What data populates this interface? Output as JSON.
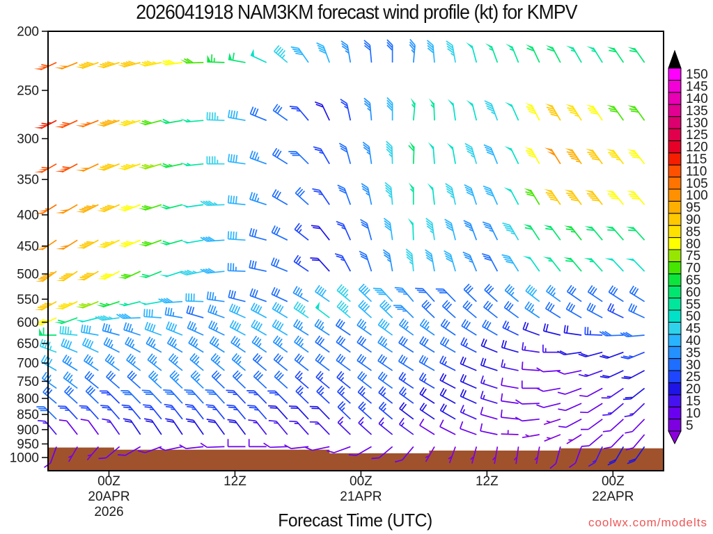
{
  "title": "2026041918 NAM3KM forecast wind profile (kt) for KMPV",
  "watermark": "coolwx.com/modelts",
  "x_axis": {
    "label": "Forecast Time (UTC)",
    "ticks": [
      {
        "hour": 6,
        "lines": [
          "00Z",
          "20APR",
          "2026"
        ]
      },
      {
        "hour": 18,
        "lines": [
          "12Z"
        ]
      },
      {
        "hour": 30,
        "lines": [
          "00Z",
          "21APR"
        ]
      },
      {
        "hour": 42,
        "lines": [
          "12Z"
        ]
      },
      {
        "hour": 54,
        "lines": [
          "00Z",
          "22APR"
        ]
      }
    ]
  },
  "y_axis": {
    "ticks": [
      200,
      250,
      300,
      350,
      400,
      450,
      500,
      550,
      600,
      650,
      700,
      750,
      800,
      850,
      900,
      950,
      1000
    ]
  },
  "colorbar": {
    "values": [
      5,
      10,
      15,
      20,
      25,
      30,
      35,
      40,
      45,
      50,
      55,
      60,
      65,
      70,
      75,
      80,
      85,
      90,
      95,
      100,
      105,
      110,
      115,
      120,
      125,
      130,
      135,
      140,
      145,
      150
    ],
    "colors": [
      "#7d00e0",
      "#6a00f0",
      "#4613f0",
      "#1e14e6",
      "#1e46ff",
      "#1e6eff",
      "#2391ff",
      "#28b4ff",
      "#2fd2eb",
      "#00e1c8",
      "#00e69b",
      "#00e66e",
      "#0ce63c",
      "#46e600",
      "#96e600",
      "#ffff00",
      "#ffe100",
      "#ffc800",
      "#ffaf00",
      "#ff9100",
      "#ff7300",
      "#ff5000",
      "#f51e00",
      "#e60028",
      "#e1004b",
      "#dc006e",
      "#e10091",
      "#e900b4",
      "#f200d7",
      "#ff00ff"
    ],
    "over_color": "#000000",
    "under_color": "#8c00dc"
  },
  "terrain": {
    "color": "#a0522d",
    "base_pressure_hpa": 1050,
    "segments": [
      {
        "h0": 0,
        "h1": 6.5,
        "top_pressure_hpa": 963
      },
      {
        "h0": 6.5,
        "h1": 27,
        "top_pressure_hpa": 971
      },
      {
        "h0": 27,
        "h1": 36.5,
        "top_pressure_hpa": 984
      },
      {
        "h0": 36.5,
        "h1": 49,
        "top_pressure_hpa": 974
      },
      {
        "h0": 49,
        "h1": 59,
        "top_pressure_hpa": 966
      }
    ]
  },
  "chart_data": {
    "type": "wind-barb-time-height",
    "model": "NAM3KM",
    "station": "KMPV",
    "init": "2026-04-19 18Z",
    "units": "kt",
    "x_axis_range_hours": [
      0,
      59
    ],
    "pressure_axis_range_hpa": [
      200,
      1050
    ],
    "x_hours_from_init": [
      1,
      3,
      5,
      7,
      9,
      11,
      13,
      15,
      17,
      19,
      21,
      23,
      25,
      27,
      29,
      31,
      33,
      35,
      37,
      39,
      41,
      43,
      45,
      47,
      49,
      51,
      53,
      55,
      57
    ],
    "pressure_levels_hpa": [
      225,
      280,
      330,
      385,
      440,
      495,
      555,
      590,
      630,
      672,
      720,
      770,
      815,
      865,
      917,
      960
    ],
    "speed_kt": [
      [
        108,
        100,
        92,
        88,
        90,
        85,
        78,
        70,
        65,
        58,
        50,
        45,
        42,
        38,
        35,
        32,
        30,
        35,
        40,
        45,
        50,
        55,
        55,
        60,
        58,
        55,
        55,
        60,
        62
      ],
      [
        115,
        112,
        105,
        95,
        85,
        68,
        62,
        55,
        45,
        38,
        32,
        28,
        25,
        22,
        25,
        35,
        40,
        55,
        55,
        50,
        48,
        45,
        52,
        80,
        88,
        85,
        80,
        68,
        70
      ],
      [
        112,
        108,
        100,
        92,
        85,
        75,
        65,
        55,
        45,
        40,
        35,
        30,
        28,
        25,
        28,
        35,
        45,
        58,
        52,
        48,
        45,
        42,
        50,
        78,
        100,
        95,
        90,
        85,
        80
      ],
      [
        105,
        102,
        95,
        88,
        80,
        72,
        62,
        52,
        45,
        40,
        35,
        30,
        28,
        25,
        28,
        35,
        45,
        55,
        50,
        45,
        42,
        40,
        48,
        70,
        90,
        92,
        88,
        82,
        78
      ],
      [
        100,
        98,
        92,
        85,
        78,
        68,
        58,
        48,
        42,
        38,
        32,
        28,
        25,
        22,
        25,
        32,
        38,
        52,
        45,
        40,
        35,
        35,
        45,
        60,
        62,
        65,
        62,
        60,
        58
      ],
      [
        95,
        92,
        88,
        80,
        72,
        62,
        52,
        45,
        40,
        35,
        30,
        28,
        25,
        22,
        25,
        30,
        35,
        45,
        42,
        38,
        35,
        32,
        40,
        52,
        55,
        58,
        55,
        52,
        50
      ],
      [
        88,
        85,
        75,
        65,
        55,
        48,
        42,
        38,
        35,
        32,
        30,
        32,
        35,
        38,
        45,
        40,
        38,
        35,
        32,
        30,
        30,
        32,
        35,
        38,
        35,
        32,
        30,
        28,
        30
      ],
      [
        80,
        60,
        50,
        45,
        40,
        38,
        35,
        32,
        35,
        38,
        40,
        42,
        45,
        50,
        45,
        40,
        38,
        35,
        32,
        30,
        28,
        30,
        32,
        35,
        32,
        30,
        28,
        26,
        28
      ],
      [
        60,
        45,
        38,
        35,
        35,
        38,
        38,
        36,
        35,
        38,
        40,
        38,
        36,
        34,
        32,
        35,
        38,
        36,
        34,
        32,
        30,
        28,
        25,
        22,
        20,
        22,
        25,
        28,
        30
      ],
      [
        45,
        40,
        38,
        35,
        34,
        35,
        36,
        35,
        34,
        35,
        36,
        35,
        34,
        32,
        30,
        32,
        34,
        32,
        30,
        28,
        25,
        22,
        18,
        15,
        15,
        18,
        20,
        22,
        25
      ],
      [
        38,
        36,
        34,
        33,
        34,
        35,
        36,
        35,
        34,
        33,
        32,
        31,
        30,
        30,
        30,
        31,
        32,
        30,
        28,
        25,
        22,
        18,
        15,
        12,
        10,
        12,
        15,
        18,
        20
      ],
      [
        35,
        34,
        32,
        31,
        32,
        33,
        34,
        33,
        32,
        31,
        30,
        28,
        26,
        26,
        27,
        28,
        28,
        26,
        24,
        22,
        20,
        16,
        12,
        10,
        8,
        10,
        12,
        15,
        18
      ],
      [
        32,
        30,
        28,
        27,
        28,
        29,
        30,
        29,
        28,
        27,
        26,
        25,
        24,
        24,
        25,
        26,
        26,
        24,
        22,
        20,
        18,
        14,
        10,
        8,
        8,
        10,
        12,
        14,
        15
      ],
      [
        28,
        26,
        25,
        24,
        25,
        26,
        27,
        26,
        25,
        24,
        23,
        22,
        22,
        22,
        23,
        24,
        24,
        22,
        20,
        18,
        15,
        12,
        10,
        8,
        6,
        8,
        10,
        12,
        12
      ],
      [
        15,
        10,
        12,
        15,
        18,
        20,
        22,
        22,
        20,
        18,
        16,
        15,
        14,
        14,
        15,
        16,
        16,
        14,
        12,
        10,
        8,
        8,
        6,
        6,
        5,
        6,
        8,
        10,
        10
      ],
      [
        8,
        5,
        6,
        8,
        10,
        10,
        10,
        10,
        8,
        8,
        8,
        8,
        8,
        8,
        8,
        8,
        8,
        8,
        6,
        5,
        5,
        5,
        5,
        5,
        8,
        10,
        15,
        18,
        20
      ]
    ],
    "dir_deg_from": [
      [
        245,
        248,
        250,
        252,
        255,
        258,
        262,
        268,
        272,
        280,
        295,
        310,
        325,
        340,
        350,
        355,
        0,
        5,
        355,
        350,
        345,
        340,
        338,
        335,
        332,
        330,
        328,
        326,
        325
      ],
      [
        242,
        245,
        248,
        250,
        252,
        255,
        260,
        265,
        272,
        280,
        292,
        305,
        320,
        335,
        348,
        355,
        0,
        5,
        358,
        352,
        346,
        340,
        336,
        333,
        330,
        328,
        326,
        325,
        324
      ],
      [
        240,
        242,
        245,
        248,
        250,
        253,
        258,
        264,
        270,
        278,
        290,
        302,
        315,
        330,
        345,
        352,
        358,
        2,
        356,
        350,
        344,
        338,
        334,
        331,
        328,
        326,
        324,
        323,
        322
      ],
      [
        238,
        240,
        243,
        246,
        249,
        252,
        256,
        262,
        268,
        276,
        288,
        300,
        312,
        326,
        340,
        348,
        355,
        0,
        354,
        348,
        342,
        336,
        332,
        329,
        326,
        324,
        322,
        321,
        320
      ],
      [
        236,
        238,
        241,
        244,
        247,
        250,
        254,
        260,
        266,
        274,
        285,
        296,
        308,
        322,
        336,
        345,
        352,
        358,
        352,
        346,
        340,
        334,
        330,
        327,
        324,
        322,
        320,
        319,
        318
      ],
      [
        234,
        236,
        239,
        242,
        245,
        248,
        252,
        258,
        264,
        272,
        282,
        292,
        304,
        318,
        332,
        342,
        350,
        355,
        350,
        344,
        338,
        332,
        328,
        325,
        322,
        320,
        318,
        317,
        316
      ],
      [
        240,
        244,
        248,
        252,
        256,
        260,
        266,
        272,
        278,
        284,
        290,
        295,
        300,
        305,
        310,
        314,
        318,
        320,
        318,
        316,
        314,
        312,
        310,
        308,
        306,
        305,
        304,
        303,
        302
      ],
      [
        245,
        250,
        256,
        262,
        268,
        274,
        280,
        286,
        290,
        294,
        298,
        301,
        304,
        307,
        310,
        312,
        314,
        315,
        314,
        312,
        310,
        308,
        306,
        304,
        302,
        300,
        298,
        296,
        295
      ],
      [
        270,
        275,
        280,
        285,
        288,
        290,
        292,
        294,
        296,
        298,
        300,
        301,
        302,
        303,
        304,
        305,
        306,
        306,
        305,
        304,
        302,
        300,
        296,
        290,
        284,
        278,
        272,
        268,
        265
      ],
      [
        290,
        292,
        295,
        297,
        299,
        300,
        301,
        302,
        303,
        304,
        305,
        306,
        306,
        306,
        306,
        305,
        304,
        303,
        302,
        300,
        297,
        292,
        286,
        278,
        270,
        262,
        255,
        250,
        248
      ],
      [
        300,
        302,
        304,
        306,
        307,
        308,
        309,
        310,
        310,
        310,
        310,
        309,
        308,
        307,
        306,
        305,
        304,
        302,
        300,
        297,
        293,
        288,
        282,
        274,
        266,
        258,
        250,
        245,
        242
      ],
      [
        305,
        307,
        309,
        311,
        312,
        313,
        314,
        314,
        314,
        314,
        313,
        312,
        311,
        310,
        309,
        308,
        306,
        304,
        301,
        298,
        294,
        288,
        280,
        270,
        260,
        250,
        242,
        236,
        232
      ],
      [
        310,
        312,
        314,
        315,
        316,
        317,
        318,
        318,
        318,
        317,
        316,
        315,
        314,
        313,
        312,
        310,
        308,
        306,
        303,
        299,
        294,
        287,
        278,
        268,
        256,
        246,
        238,
        230,
        226
      ],
      [
        315,
        317,
        318,
        319,
        320,
        321,
        322,
        322,
        321,
        320,
        319,
        318,
        317,
        316,
        314,
        312,
        310,
        307,
        304,
        300,
        294,
        286,
        276,
        264,
        252,
        242,
        234,
        228,
        224
      ],
      [
        320,
        322,
        324,
        325,
        326,
        326,
        326,
        325,
        324,
        323,
        322,
        320,
        318,
        316,
        314,
        312,
        309,
        306,
        302,
        297,
        290,
        282,
        272,
        260,
        248,
        238,
        230,
        224,
        220
      ],
      [
        200,
        210,
        220,
        230,
        240,
        250,
        258,
        264,
        268,
        270,
        270,
        268,
        264,
        258,
        250,
        240,
        230,
        220,
        210,
        200,
        195,
        190,
        188,
        190,
        195,
        200,
        205,
        210,
        215
      ]
    ]
  }
}
